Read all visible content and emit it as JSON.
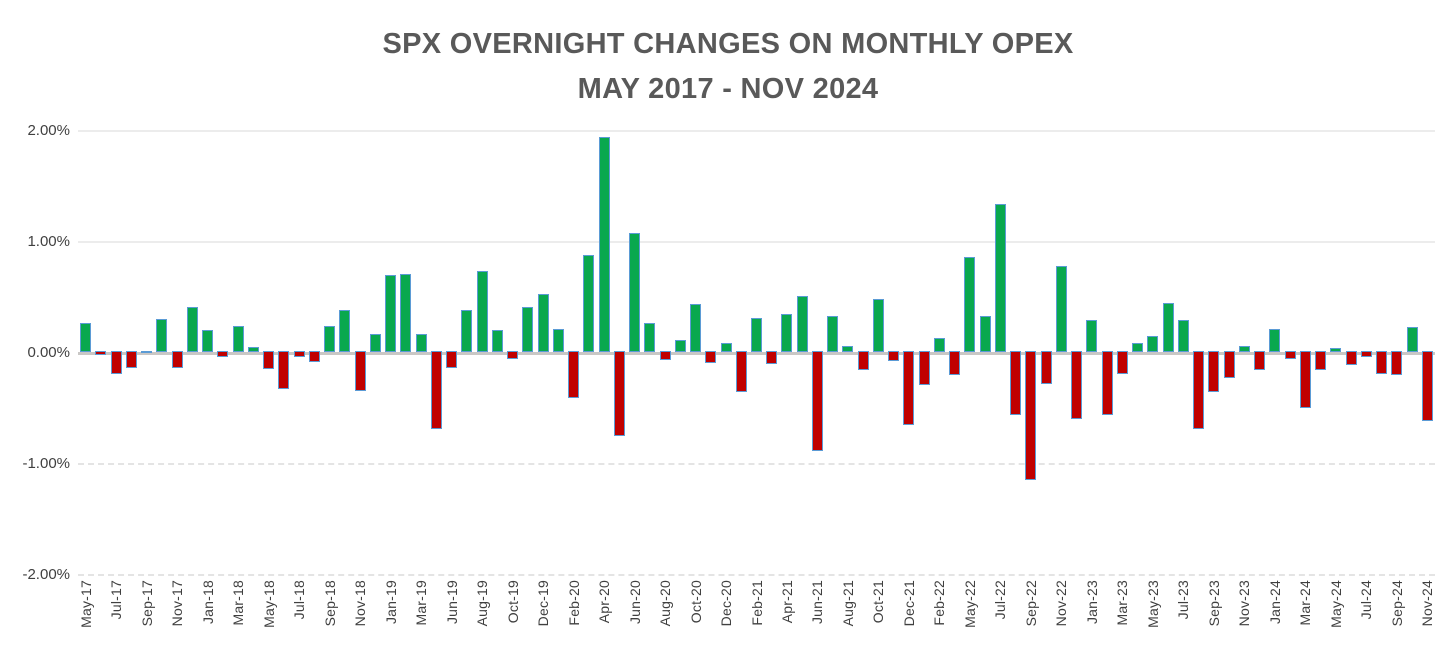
{
  "title": {
    "line1": "SPX OVERNIGHT CHANGES ON MONTHLY OPEX",
    "line2": "MAY 2017 - NOV 2024"
  },
  "colors": {
    "positive_bar": "#09A84E",
    "negative_bar": "#C00000",
    "bar_border": "#5B9BD5",
    "title_text": "#595959",
    "axis_text": "#404040",
    "gridline": "#ECECEC",
    "zero_line": "#C9C7C5"
  },
  "chart_data": {
    "type": "bar",
    "title": "SPX OVERNIGHT CHANGES ON MONTHLY OPEX MAY 2017 - NOV 2024",
    "xlabel": "",
    "ylabel": "",
    "unit": "%",
    "ylim": [
      -2.0,
      2.0
    ],
    "grid": true,
    "legend": false,
    "x_label_every": 2,
    "yticks": [
      {
        "label": "2.00%",
        "value": 2.0
      },
      {
        "label": "1.00%",
        "value": 1.0
      },
      {
        "label": "0.00%",
        "value": 0.0
      },
      {
        "label": "-1.00%",
        "value": -1.0
      },
      {
        "label": "-2.00%",
        "value": -2.0
      }
    ],
    "categories": [
      "May-17",
      "Jun-17",
      "Jul-17",
      "Aug-17",
      "Sep-17",
      "Oct-17",
      "Nov-17",
      "Dec-17",
      "Jan-18",
      "Feb-18",
      "Mar-18",
      "Apr-18",
      "May-18",
      "Jun-18",
      "Jul-18",
      "Aug-18",
      "Sep-18",
      "Oct-18",
      "Nov-18",
      "Dec-18",
      "Jan-19",
      "Feb-19",
      "Mar-19",
      "Apr-19",
      "Jun-19",
      "Jul-19",
      "Aug-19",
      "Sep-19",
      "Oct-19",
      "Nov-19",
      "Dec-19",
      "Jan-20",
      "Feb-20",
      "Mar-20",
      "Apr-20",
      "May-20",
      "Jun-20",
      "Jul-20",
      "Aug-20",
      "Sep-20",
      "Oct-20",
      "Nov-20",
      "Dec-20",
      "Jan-21",
      "Feb-21",
      "Mar-21",
      "Apr-21",
      "May-21",
      "Jun-21",
      "Jul-21",
      "Aug-21",
      "Sep-21",
      "Oct-21",
      "Nov-21",
      "Dec-21",
      "Jan-22",
      "Feb-22",
      "Apr-22",
      "May-22",
      "Jun-22",
      "Jul-22",
      "Aug-22",
      "Sep-22",
      "Oct-22",
      "Nov-22",
      "Dec-22",
      "Jan-23",
      "Feb-23",
      "Mar-23",
      "Apr-23",
      "May-23",
      "Jun-23",
      "Jul-23",
      "Aug-23",
      "Sep-23",
      "Oct-23",
      "Nov-23",
      "Dec-23",
      "Jan-24",
      "Feb-24",
      "Mar-24",
      "Apr-24",
      "May-24",
      "Jun-24",
      "Jul-24",
      "Aug-24",
      "Sep-24",
      "Oct-24",
      "Nov-24"
    ],
    "values": [
      0.27,
      -0.04,
      -0.21,
      -0.15,
      -0.02,
      0.3,
      -0.15,
      0.41,
      0.2,
      -0.05,
      0.24,
      0.05,
      -0.16,
      -0.34,
      -0.05,
      -0.1,
      0.24,
      0.38,
      -0.36,
      0.17,
      0.7,
      0.71,
      0.17,
      -0.7,
      -0.15,
      0.38,
      0.73,
      0.2,
      -0.07,
      0.41,
      0.53,
      0.21,
      -0.42,
      0.88,
      1.94,
      -0.77,
      1.08,
      0.27,
      -0.08,
      0.11,
      0.44,
      -0.11,
      0.09,
      -0.37,
      0.31,
      -0.12,
      0.35,
      0.51,
      -0.9,
      0.33,
      0.06,
      -0.17,
      0.48,
      -0.09,
      -0.67,
      -0.31,
      0.13,
      -0.22,
      0.86,
      0.33,
      1.34,
      -0.58,
      -1.16,
      -0.3,
      0.78,
      -0.61,
      0.29,
      -0.58,
      -0.21,
      0.09,
      0.15,
      0.45,
      0.29,
      -0.7,
      -0.37,
      -0.24,
      0.06,
      -0.17,
      0.21,
      -0.07,
      -0.51,
      -0.17,
      0.04,
      -0.13,
      -0.05,
      -0.21,
      -0.22,
      0.23,
      -0.63
    ]
  }
}
